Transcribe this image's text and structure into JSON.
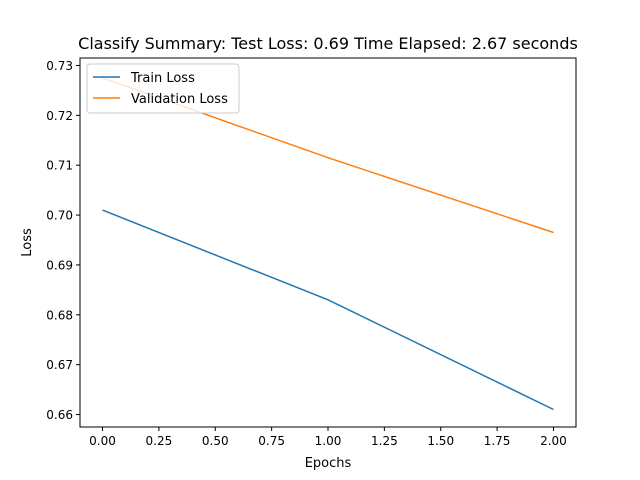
{
  "chart_data": {
    "type": "line",
    "title": "Classify Summary: Test Loss: 0.69 Time Elapsed: 2.67 seconds",
    "xlabel": "Epochs",
    "ylabel": "Loss",
    "xlim": [
      -0.1,
      2.1
    ],
    "ylim": [
      0.6575,
      0.7315
    ],
    "xticks": [
      0.0,
      0.25,
      0.5,
      0.75,
      1.0,
      1.25,
      1.5,
      1.75,
      2.0
    ],
    "xtick_labels": [
      "0.00",
      "0.25",
      "0.50",
      "0.75",
      "1.00",
      "1.25",
      "1.50",
      "1.75",
      "2.00"
    ],
    "yticks": [
      0.66,
      0.67,
      0.68,
      0.69,
      0.7,
      0.71,
      0.72,
      0.73
    ],
    "ytick_labels": [
      "0.66",
      "0.67",
      "0.68",
      "0.69",
      "0.70",
      "0.71",
      "0.72",
      "0.73"
    ],
    "grid": false,
    "legend_position": "top-left",
    "x": [
      0,
      1,
      2
    ],
    "series": [
      {
        "name": "Train Loss",
        "color": "#1f77b4",
        "values": [
          0.701,
          0.683,
          0.661
        ]
      },
      {
        "name": "Validation Loss",
        "color": "#ff7f0e",
        "values": [
          0.7275,
          0.7115,
          0.6965
        ]
      }
    ]
  }
}
